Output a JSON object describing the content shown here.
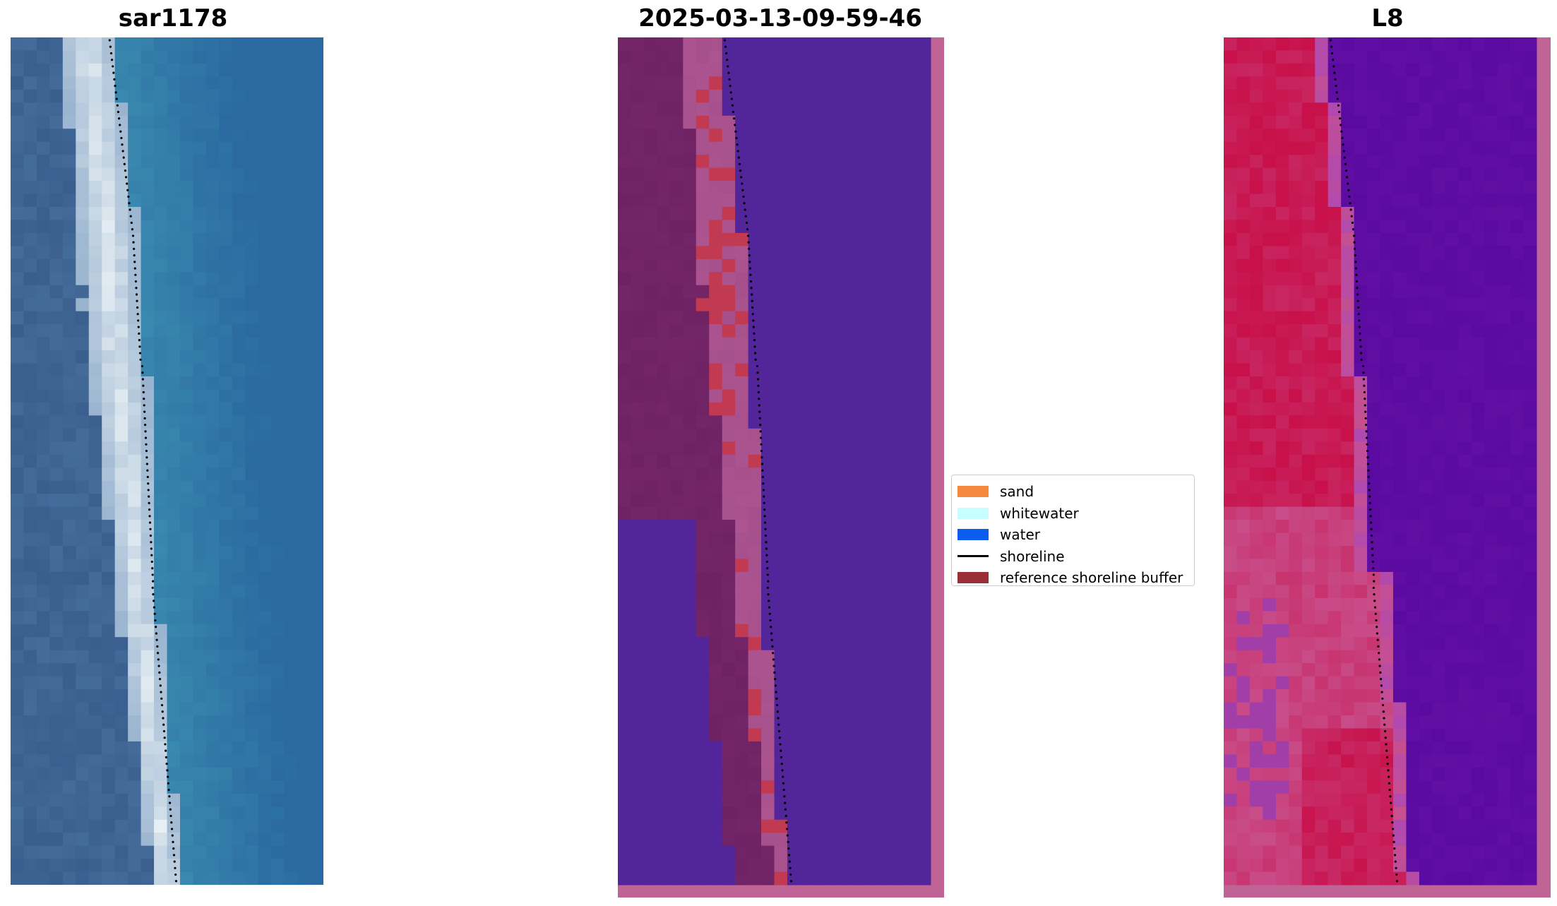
{
  "panels": [
    {
      "title": "sar1178",
      "kind": "rgb-image"
    },
    {
      "title": "2025-03-13-09-59-46",
      "kind": "classified-image"
    },
    {
      "title": "L8",
      "kind": "index-image"
    }
  ],
  "legend": {
    "items": [
      {
        "label": "sand",
        "color": "#f58a3e",
        "kind": "patch"
      },
      {
        "label": "whitewater",
        "color": "#c7fdff",
        "kind": "patch"
      },
      {
        "label": "water",
        "color": "#0d5cf0",
        "kind": "patch"
      },
      {
        "label": "shoreline",
        "color": "#000000",
        "kind": "line"
      },
      {
        "label": "reference shoreline buffer",
        "color": "#9b2f38",
        "kind": "patch"
      }
    ]
  },
  "colors": {
    "sar_water": "#2a6aa0",
    "sar_land": "#3a5e8e",
    "sar_whitewater": "#e8f0f4",
    "class_water": "#52259a",
    "class_buffer": "#6e2263",
    "class_sand": "#a5508c",
    "class_highlight": "#c13a52",
    "class_border": "#c06496",
    "l8_water": "#5a0aa0",
    "l8_red": "#c8104a",
    "l8_pink": "#c8508c",
    "l8_border": "#c06496"
  }
}
